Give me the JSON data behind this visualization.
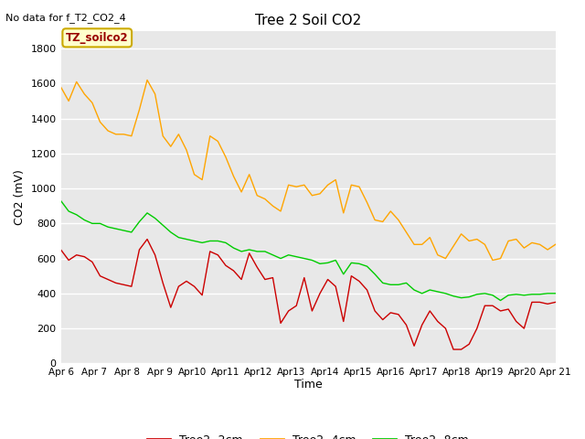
{
  "title": "Tree 2 Soil CO2",
  "subtitle": "No data for f_T2_CO2_4",
  "ylabel": "CO2 (mV)",
  "xlabel": "Time",
  "legend_label": "TZ_soilco2",
  "x_tick_labels": [
    "Apr 6",
    "Apr 7",
    "Apr 8",
    "Apr 9",
    "Apr10",
    "Apr11",
    "Apr12",
    "Apr13",
    "Apr14",
    "Apr15",
    "Apr16",
    "Apr17",
    "Apr18",
    "Apr19",
    "Apr20",
    "Apr 21"
  ],
  "ylim": [
    0,
    1900
  ],
  "yticks": [
    0,
    200,
    400,
    600,
    800,
    1000,
    1200,
    1400,
    1600,
    1800
  ],
  "color_2cm": "#cc0000",
  "color_4cm": "#ffa500",
  "color_8cm": "#00cc00",
  "fig_bg_color": "#ffffff",
  "plot_bg_color": "#e8e8e8",
  "grid_color": "#ffffff",
  "series_2cm": [
    650,
    590,
    620,
    610,
    580,
    500,
    480,
    460,
    450,
    440,
    650,
    710,
    620,
    460,
    320,
    440,
    470,
    440,
    390,
    640,
    620,
    560,
    530,
    480,
    630,
    550,
    480,
    490,
    230,
    300,
    330,
    490,
    300,
    400,
    480,
    440,
    240,
    500,
    470,
    420,
    300,
    250,
    290,
    280,
    220,
    100,
    220,
    300,
    240,
    200,
    80,
    80,
    110,
    200,
    330,
    330,
    300,
    310,
    240,
    200,
    350,
    350,
    340,
    350
  ],
  "series_4cm": [
    1580,
    1500,
    1610,
    1540,
    1490,
    1380,
    1330,
    1310,
    1310,
    1300,
    1450,
    1620,
    1540,
    1300,
    1240,
    1310,
    1220,
    1080,
    1050,
    1300,
    1270,
    1180,
    1070,
    980,
    1080,
    960,
    940,
    900,
    870,
    1020,
    1010,
    1020,
    960,
    970,
    1020,
    1050,
    860,
    1020,
    1010,
    920,
    820,
    810,
    870,
    820,
    750,
    680,
    680,
    720,
    620,
    600,
    670,
    740,
    700,
    710,
    680,
    590,
    600,
    700,
    710,
    660,
    690,
    680,
    650,
    680
  ],
  "series_8cm": [
    930,
    870,
    850,
    820,
    800,
    800,
    780,
    770,
    760,
    750,
    810,
    860,
    830,
    790,
    750,
    720,
    710,
    700,
    690,
    700,
    700,
    690,
    660,
    640,
    650,
    640,
    640,
    620,
    600,
    620,
    610,
    600,
    590,
    570,
    575,
    590,
    510,
    575,
    570,
    555,
    510,
    460,
    450,
    450,
    460,
    420,
    400,
    420,
    410,
    400,
    385,
    375,
    380,
    395,
    400,
    390,
    360,
    390,
    395,
    390,
    395,
    395,
    400,
    400
  ]
}
